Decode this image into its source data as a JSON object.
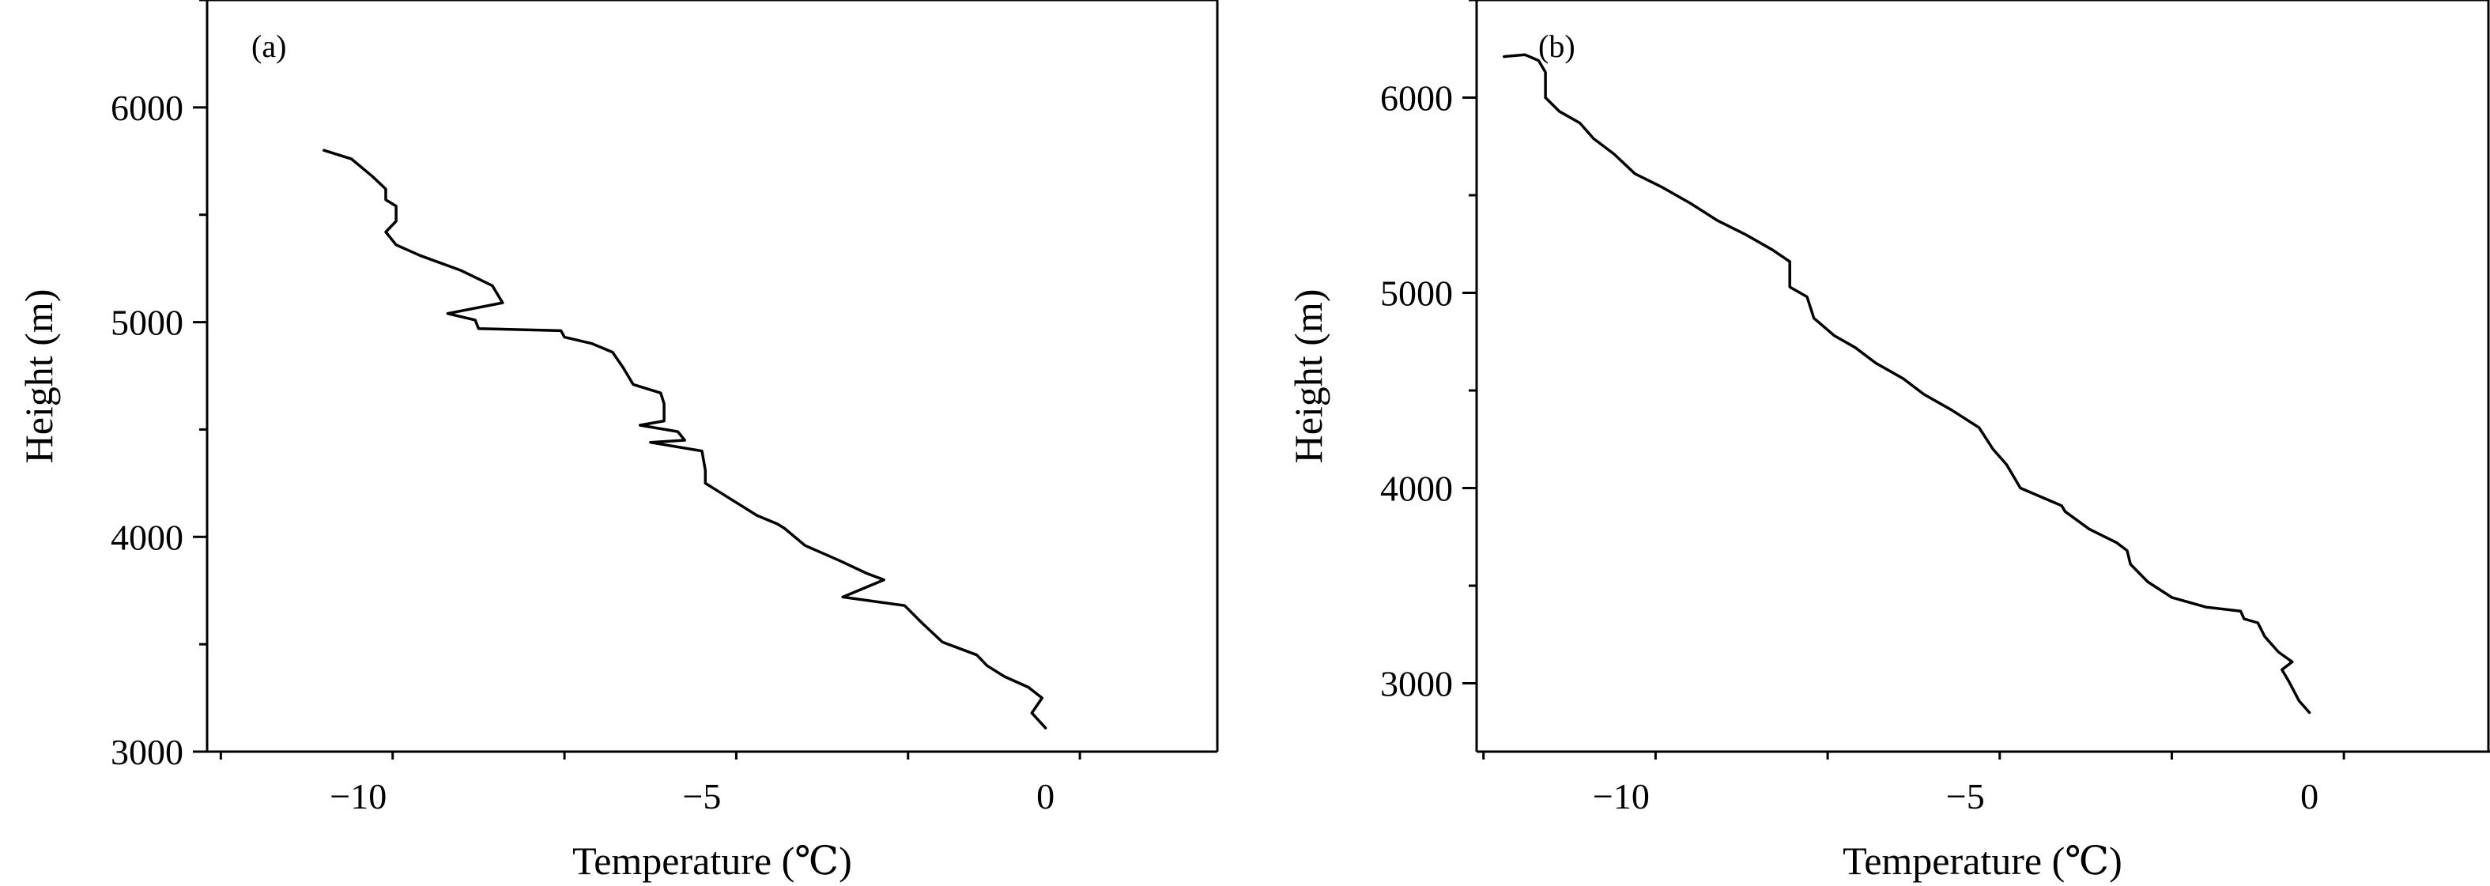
{
  "chart_data": [
    {
      "type": "line",
      "panel_label": "(a)",
      "xlabel": "Temperature (℃)",
      "ylabel": "Height (m)",
      "xlim": [
        -12.2,
        2.5
      ],
      "ylim": [
        3000,
        6500
      ],
      "x_ticks": [
        -10,
        -5,
        0
      ],
      "y_ticks": [
        3000,
        4000,
        5000,
        6000
      ],
      "grid": false,
      "series": [
        {
          "x": [
            -10.5,
            -10.1,
            -9.8,
            -9.6,
            -9.6,
            -9.45,
            -9.45,
            -9.6,
            -9.45,
            -9.1,
            -8.5,
            -8.05,
            -7.9,
            -8.7,
            -8.3,
            -8.25,
            -7.05,
            -7.0,
            -6.6,
            -6.3,
            -6.15,
            -6.0,
            -5.6,
            -5.55,
            -5.55,
            -5.9,
            -5.35,
            -5.25,
            -5.75,
            -5.0,
            -4.95,
            -4.95,
            -4.85,
            -4.5,
            -4.2,
            -3.9,
            -3.8,
            -3.5,
            -3.0,
            -2.6,
            -2.35,
            -2.95,
            -2.05,
            -1.8,
            -1.5,
            -1.0,
            -0.85,
            -0.6,
            -0.25,
            -0.05,
            -0.2,
            0.0
          ],
          "y": [
            5800,
            5760,
            5680,
            5620,
            5570,
            5540,
            5470,
            5420,
            5360,
            5310,
            5240,
            5170,
            5090,
            5040,
            5010,
            4970,
            4960,
            4930,
            4900,
            4860,
            4790,
            4710,
            4670,
            4620,
            4540,
            4520,
            4490,
            4450,
            4440,
            4400,
            4310,
            4250,
            4230,
            4160,
            4100,
            4060,
            4040,
            3960,
            3890,
            3830,
            3800,
            3720,
            3680,
            3600,
            3510,
            3450,
            3400,
            3350,
            3300,
            3250,
            3180,
            3110
          ]
        }
      ]
    },
    {
      "type": "line",
      "panel_label": "(b)",
      "xlabel": "Temperature (℃)",
      "ylabel": "Height (m)",
      "xlim": [
        -12.1,
        2.6
      ],
      "ylim": [
        2650,
        6500
      ],
      "x_ticks": [
        -10,
        -5,
        0
      ],
      "y_ticks": [
        3000,
        4000,
        5000,
        6000
      ],
      "grid": false,
      "series": [
        {
          "x": [
            -11.7,
            -11.4,
            -11.2,
            -11.1,
            -11.1,
            -10.9,
            -10.6,
            -10.4,
            -10.1,
            -9.8,
            -9.4,
            -9.0,
            -8.6,
            -8.2,
            -7.8,
            -7.55,
            -7.55,
            -7.3,
            -7.2,
            -6.9,
            -6.6,
            -6.3,
            -5.9,
            -5.6,
            -5.2,
            -4.8,
            -4.6,
            -4.4,
            -4.2,
            -3.8,
            -3.6,
            -3.55,
            -3.2,
            -2.8,
            -2.65,
            -2.6,
            -2.35,
            -2.0,
            -1.5,
            -1.0,
            -0.95,
            -0.75,
            -0.65,
            -0.45,
            -0.25,
            -0.4,
            -0.3,
            -0.15,
            0.0
          ],
          "y": [
            6210,
            6220,
            6190,
            6130,
            6000,
            5930,
            5870,
            5790,
            5710,
            5610,
            5540,
            5460,
            5370,
            5300,
            5220,
            5160,
            5030,
            4980,
            4870,
            4780,
            4720,
            4640,
            4560,
            4480,
            4400,
            4310,
            4200,
            4120,
            4000,
            3940,
            3910,
            3880,
            3790,
            3720,
            3680,
            3610,
            3520,
            3440,
            3390,
            3370,
            3330,
            3310,
            3240,
            3160,
            3110,
            3070,
            3010,
            2910,
            2850
          ]
        }
      ]
    }
  ]
}
